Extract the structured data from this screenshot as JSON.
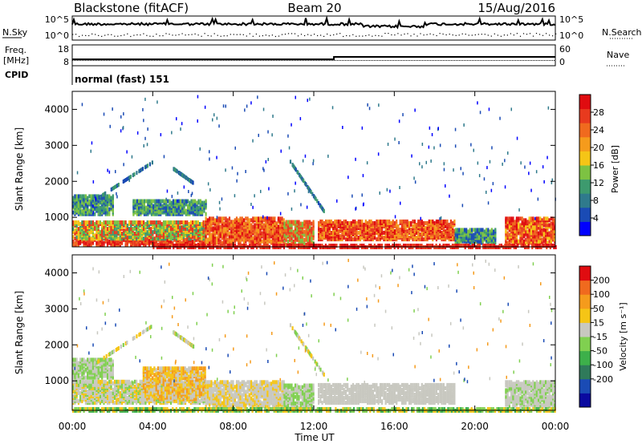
{
  "header": {
    "station": "Blackstone (fitACF)",
    "beam": "Beam 20",
    "date": "15/Aug/2016"
  },
  "noise_panel": {
    "left_label": "N.Sky",
    "right_label": "N.Search",
    "left_ticks": [
      "10^5",
      "10^0"
    ],
    "right_ticks": [
      "10^5",
      "10^0"
    ]
  },
  "freq_panel": {
    "left_label_1": "Freq.",
    "left_label_2": "[MHz]",
    "right_label": "Nave",
    "left_ticks": [
      "18",
      "8"
    ],
    "right_ticks": [
      "60",
      "0"
    ]
  },
  "cpid_panel": {
    "label": "CPID",
    "value": "normal (fast) 151"
  },
  "chart_data": [
    {
      "type": "heatmap",
      "name": "power",
      "ylabel": "Slant Range [km]",
      "xlabel": "",
      "yticks": [
        "1000",
        "2000",
        "3000",
        "4000"
      ],
      "ylim": [
        180,
        4500
      ],
      "colorbar_label": "Power [dB]",
      "colorbar_ticks": [
        "4",
        "8",
        "12",
        "16",
        "20",
        "24",
        "28"
      ],
      "colorbar_colors": [
        "#0000ff",
        "#1a4bb5",
        "#2f7a8c",
        "#3d9a6e",
        "#7dc242",
        "#f5c516",
        "#f59b1c",
        "#f06a1e",
        "#e83a1e",
        "#e00c10"
      ]
    },
    {
      "type": "heatmap",
      "name": "velocity",
      "ylabel": "Slant Range [km]",
      "xlabel": "Time UT",
      "yticks": [
        "1000",
        "2000",
        "3000",
        "4000"
      ],
      "ylim": [
        180,
        4500
      ],
      "xticks": [
        "00:00",
        "04:00",
        "08:00",
        "12:00",
        "16:00",
        "20:00",
        "00:00"
      ],
      "colorbar_label": "Velocity [m s⁻¹]",
      "colorbar_ticks": [
        "200",
        "100",
        "50",
        "15",
        "-15",
        "-50",
        "-100",
        "-200"
      ],
      "colorbar_colors": [
        "#0a0aa0",
        "#1a4bb5",
        "#2f7a5a",
        "#3db04a",
        "#80d050",
        "#c8c8c0",
        "#f5c516",
        "#f59b1c",
        "#f06a1e",
        "#e00c10"
      ]
    }
  ]
}
